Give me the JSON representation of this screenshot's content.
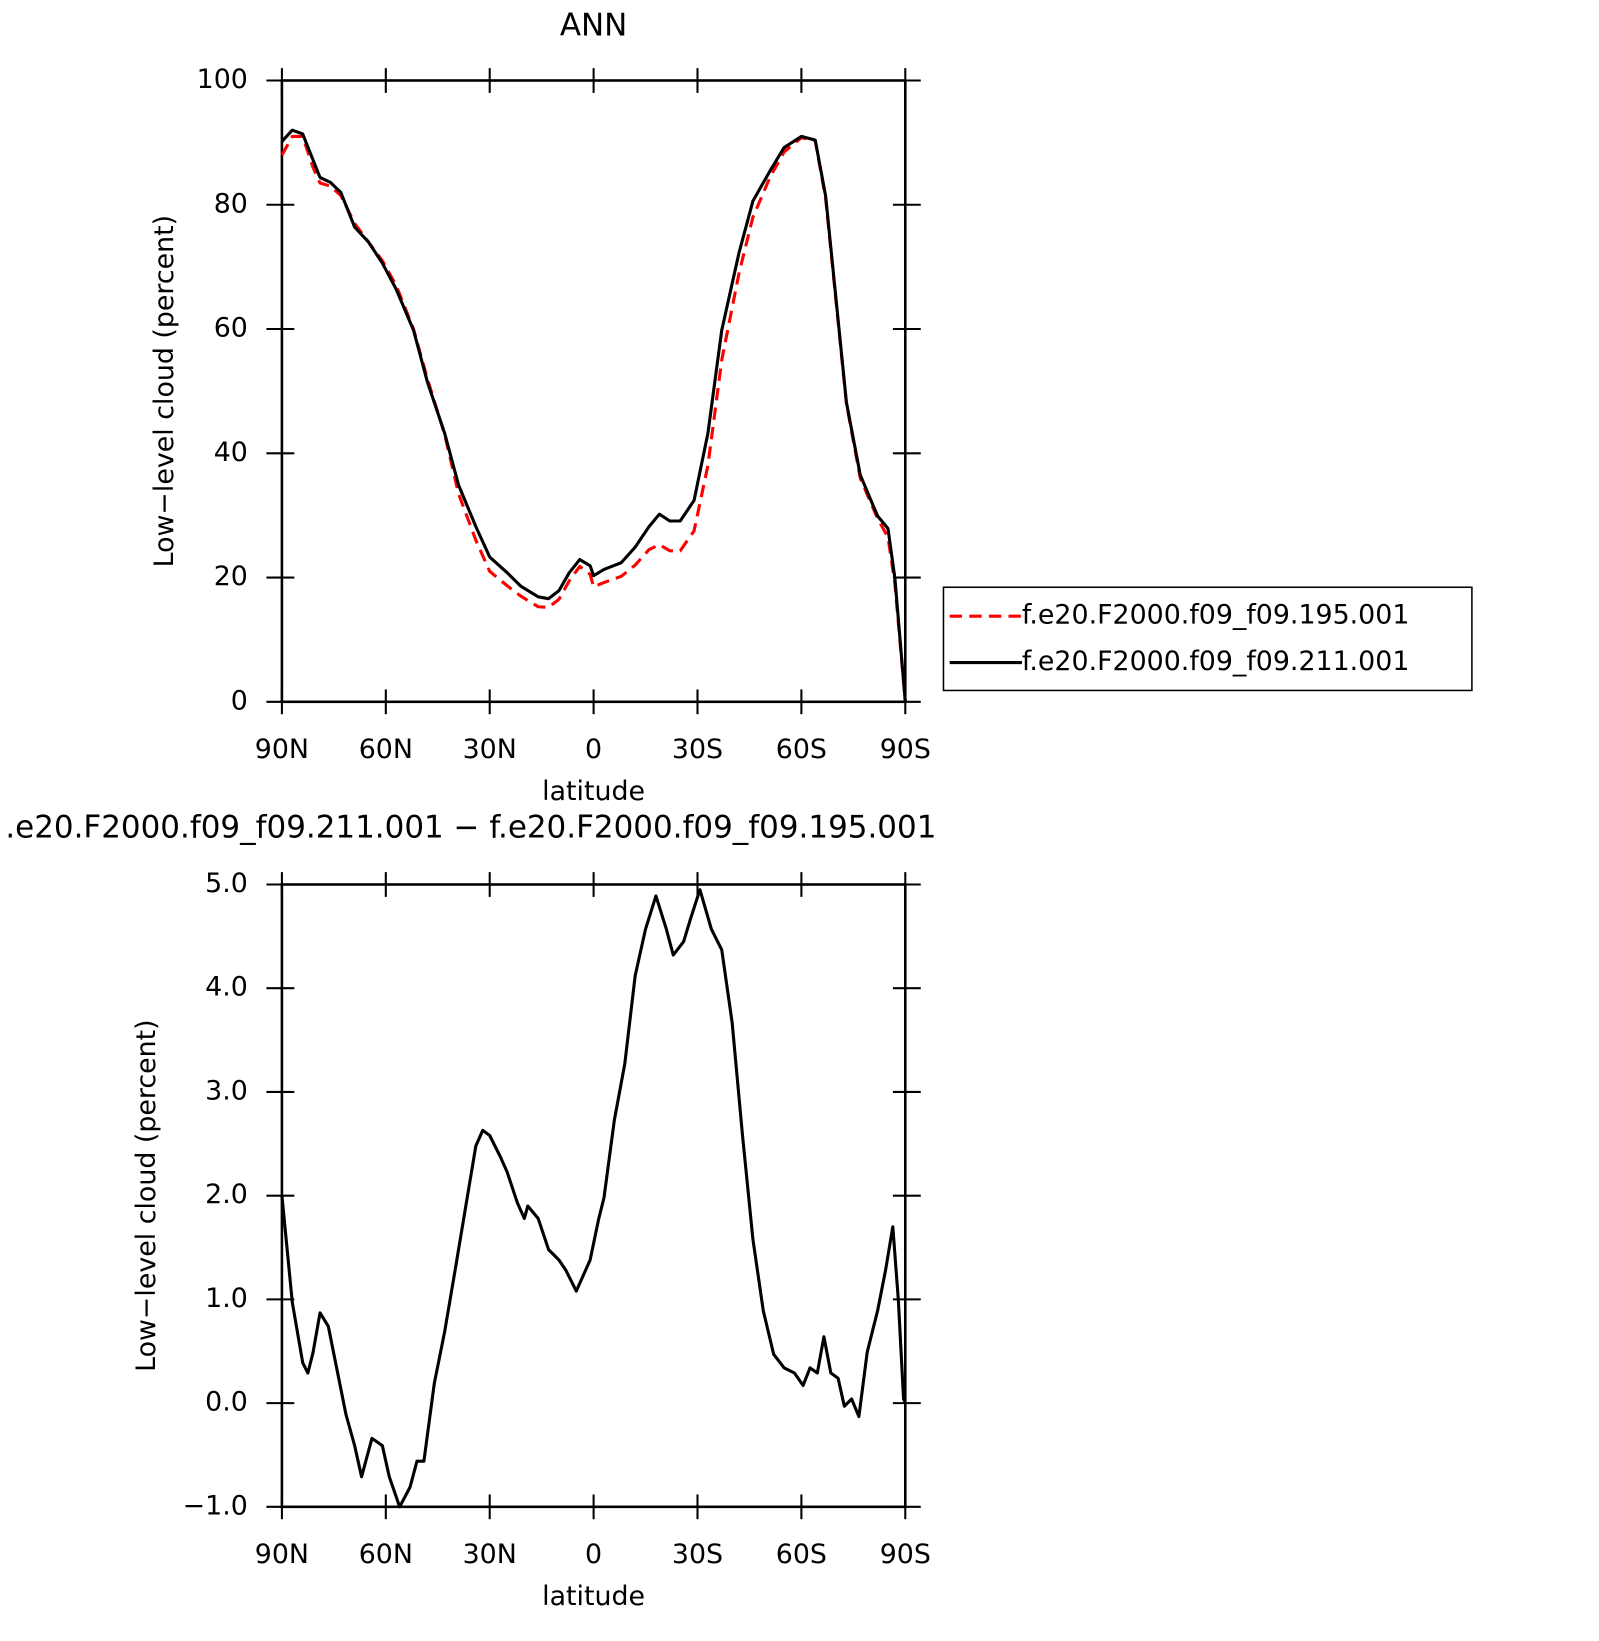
{
  "chart_data": [
    {
      "type": "line",
      "title": "ANN",
      "xlabel": "latitude",
      "ylabel": "Low−level cloud (percent)",
      "x": [
        90,
        87,
        84,
        81,
        79,
        76,
        73,
        69,
        65,
        61,
        57,
        52,
        48,
        43,
        39,
        34,
        30,
        25,
        21,
        16,
        13,
        10,
        7,
        4,
        1,
        0,
        -3,
        -8,
        -12,
        -16,
        -19,
        -22,
        -25,
        -29,
        -33,
        -37,
        -42,
        -46,
        -51,
        -55,
        -60,
        -64,
        -67,
        -70,
        -73,
        -77,
        -82,
        -85,
        -87,
        -90
      ],
      "series": [
        {
          "name": "f.e20.F2000.f09_f09.195.001",
          "color": "#ff0000",
          "style": "dashed",
          "values": [
            88,
            91,
            91,
            86,
            83.5,
            83,
            81.5,
            77,
            74,
            71,
            67,
            60,
            52,
            43,
            33.5,
            26,
            21,
            18.7,
            17,
            15.3,
            15.2,
            16.5,
            19.5,
            21.8,
            20.5,
            18.5,
            19.2,
            20.2,
            22,
            24.5,
            25.3,
            24.3,
            24.3,
            27.5,
            38,
            55,
            69,
            78,
            84.5,
            88.5,
            90.8,
            90.3,
            81,
            64.5,
            48,
            36,
            29.5,
            26.5,
            19,
            0
          ]
        },
        {
          "name": "f.e20.F2000.f09_f09.211.001",
          "color": "#000000",
          "style": "solid",
          "values": [
            90.2,
            92,
            91.4,
            87.2,
            84.4,
            83.6,
            82,
            76.4,
            74,
            70.6,
            66.4,
            59.8,
            51.5,
            43.2,
            34.9,
            28.2,
            23.3,
            20.8,
            18.6,
            16.9,
            16.6,
            17.9,
            20.8,
            22.9,
            21.9,
            20.3,
            21.3,
            22.4,
            24.9,
            28.2,
            30.2,
            29.1,
            29.1,
            32.4,
            43.2,
            59.8,
            72.3,
            80.6,
            85.5,
            89.2,
            91,
            90.4,
            81.4,
            64.8,
            48.2,
            36.5,
            29.9,
            27.9,
            19.9,
            0
          ]
        }
      ],
      "xlim": [
        90,
        -90
      ],
      "xticks": [
        {
          "value": 90,
          "label": "90N"
        },
        {
          "value": 60,
          "label": "60N"
        },
        {
          "value": 30,
          "label": "30N"
        },
        0,
        {
          "value": -30,
          "label": "30S"
        },
        {
          "value": -60,
          "label": "60S"
        },
        {
          "value": -90,
          "label": "90S"
        }
      ],
      "ylim": [
        0,
        100
      ],
      "yticks": [
        0,
        20,
        40,
        60,
        80,
        100
      ],
      "legend": "right"
    },
    {
      "type": "line",
      "title": ".e20.F2000.f09_f09.211.001 − f.e20.F2000.f09_f09.195.001",
      "xlabel": "latitude",
      "ylabel": "Low−level cloud (percent)",
      "color": "#000000",
      "x": [
        90,
        87,
        84,
        82.5,
        81,
        79,
        76.6,
        74.5,
        71.5,
        69,
        67,
        64,
        61,
        59,
        56,
        53,
        51,
        49,
        46,
        43,
        40,
        37,
        34,
        32,
        30,
        27,
        25,
        22,
        20,
        19,
        16,
        13,
        10,
        8,
        5,
        1,
        -1.5,
        -3,
        -6,
        -9,
        -12,
        -15,
        -18,
        -21,
        -23,
        -26,
        -28,
        -30.7,
        -34,
        -37,
        -40,
        -43,
        -46,
        -49,
        -52,
        -55,
        -58,
        -60.5,
        -62.5,
        -64.6,
        -66.5,
        -68.5,
        -70.6,
        -72.4,
        -74.5,
        -76.6,
        -79,
        -82,
        -84.3,
        -86.4,
        -88,
        -89.5,
        -90
      ],
      "values": [
        2.0,
        0.97,
        0.39,
        0.29,
        0.49,
        0.87,
        0.74,
        0.39,
        -0.11,
        -0.41,
        -0.71,
        -0.34,
        -0.41,
        -0.71,
        -1.0,
        -0.81,
        -0.56,
        -0.56,
        0.19,
        0.69,
        1.28,
        1.88,
        2.48,
        2.63,
        2.58,
        2.38,
        2.23,
        1.93,
        1.78,
        1.9,
        1.78,
        1.48,
        1.38,
        1.28,
        1.08,
        1.38,
        1.78,
        1.98,
        2.73,
        3.27,
        4.12,
        4.57,
        4.89,
        4.57,
        4.32,
        4.45,
        4.67,
        4.95,
        4.57,
        4.37,
        3.67,
        2.58,
        1.58,
        0.89,
        0.47,
        0.34,
        0.29,
        0.17,
        0.34,
        0.29,
        0.64,
        0.29,
        0.24,
        -0.03,
        0.04,
        -0.13,
        0.49,
        0.89,
        1.28,
        1.7,
        0.99,
        0.04,
        0
      ],
      "xlim": [
        90,
        -90
      ],
      "xticks": [
        {
          "value": 90,
          "label": "90N"
        },
        {
          "value": 60,
          "label": "60N"
        },
        {
          "value": 30,
          "label": "30N"
        },
        0,
        {
          "value": -30,
          "label": "30S"
        },
        {
          "value": -60,
          "label": "60S"
        },
        {
          "value": -90,
          "label": "90S"
        }
      ],
      "ylim": [
        -1,
        5
      ],
      "yticks": [
        {
          "value": -1,
          "label": "−1.0"
        },
        {
          "value": 0,
          "label": "0.0"
        },
        {
          "value": 1,
          "label": "1.0"
        },
        {
          "value": 2,
          "label": "2.0"
        },
        {
          "value": 3,
          "label": "3.0"
        },
        {
          "value": 4,
          "label": "4.0"
        },
        {
          "value": 5,
          "label": "5.0"
        }
      ]
    }
  ]
}
